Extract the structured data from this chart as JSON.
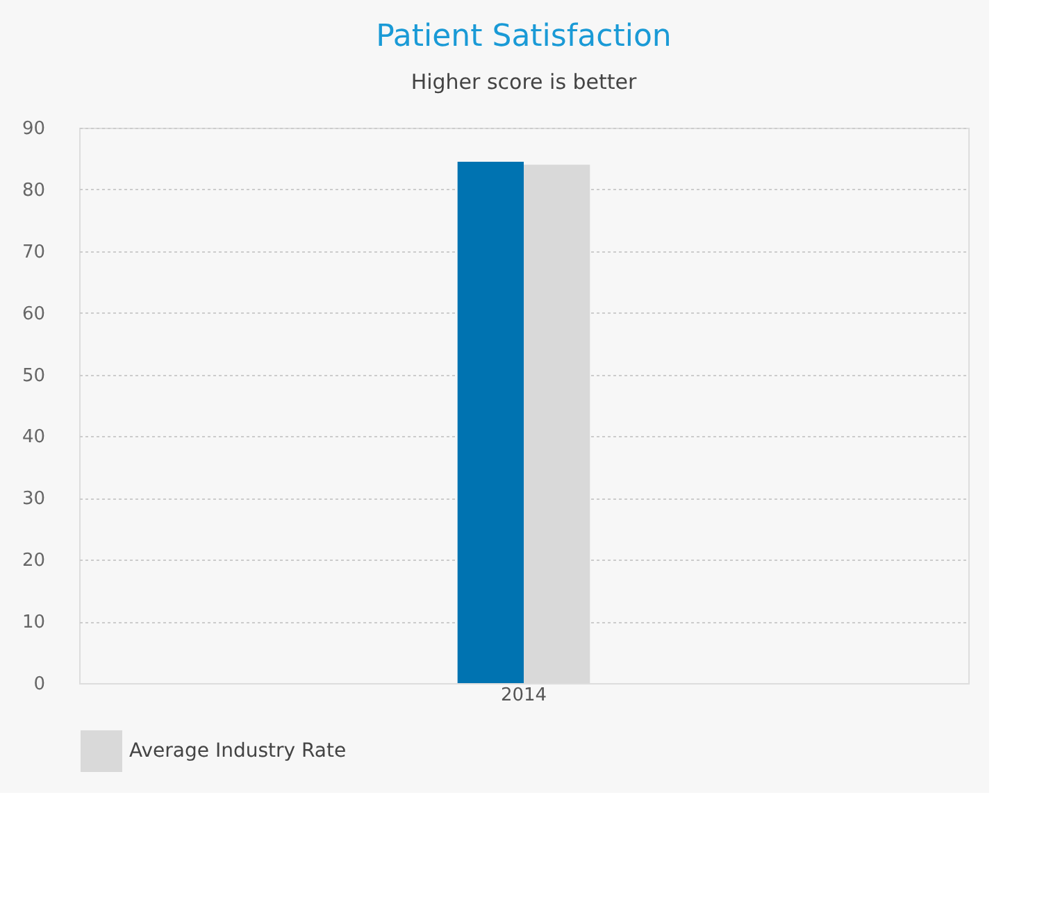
{
  "chart_data": {
    "type": "bar",
    "title": "Patient Satisfaction",
    "subtitle": "Higher score is better",
    "categories": [
      "2014"
    ],
    "series": [
      {
        "color": "#0073b1",
        "values": [
          84.5
        ]
      },
      {
        "name": "Average Industry Rate",
        "color": "#d9d9d9",
        "values": [
          84
        ]
      }
    ],
    "ylim": [
      0,
      90
    ],
    "yticks": [
      0,
      10,
      20,
      30,
      40,
      50,
      60,
      70,
      80,
      90
    ],
    "grid": "y",
    "legend": "bottom"
  }
}
